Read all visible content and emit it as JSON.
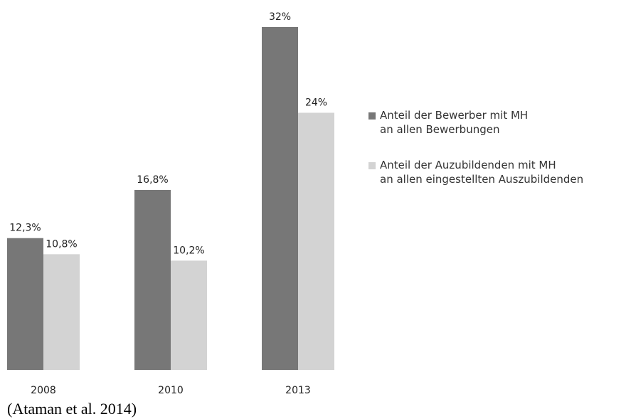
{
  "chart_data": {
    "type": "bar",
    "categories": [
      "2008",
      "2010",
      "2013"
    ],
    "series": [
      {
        "name": "Anteil der Bewerber mit MH\nan allen Bewerbungen",
        "color": "#777777",
        "values": [
          12.3,
          16.8,
          32
        ],
        "value_labels": [
          "12,3%",
          "16,8%",
          "32%"
        ]
      },
      {
        "name": "Anteil der Auzubildenden mit MH\nan allen eingestellten Auszubildenden",
        "color": "#d3d3d3",
        "values": [
          10.8,
          10.2,
          24
        ],
        "value_labels": [
          "10,8%",
          "10,2%",
          "24%"
        ]
      }
    ],
    "legend": "right",
    "caption": "(Ataman et al. 2014)"
  }
}
